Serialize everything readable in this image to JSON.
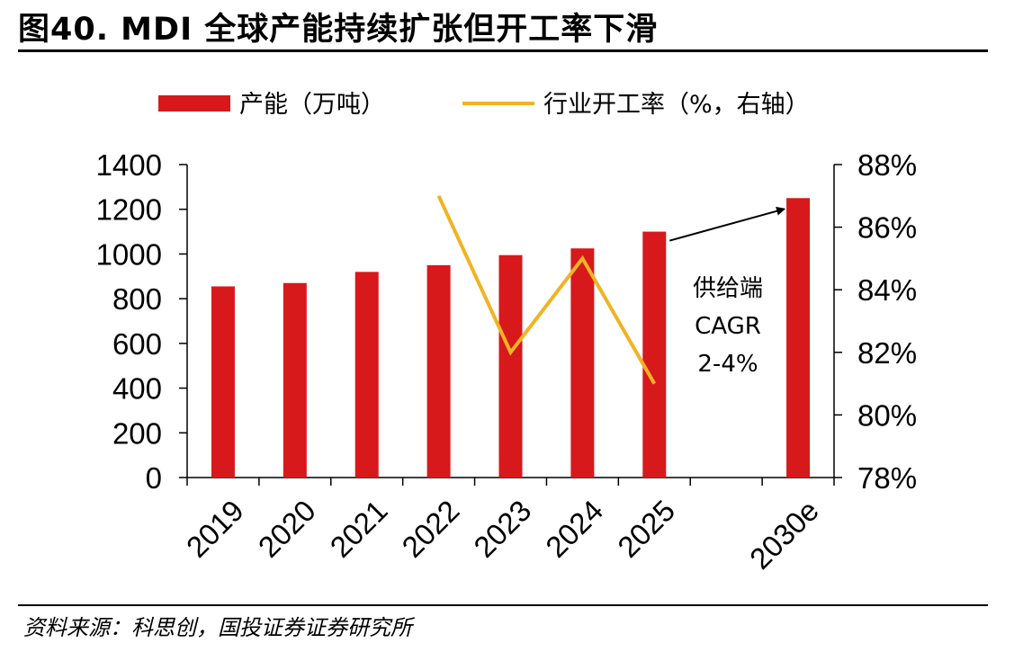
{
  "header": {
    "title": "图40. MDI 全球产能持续扩张但开工率下滑"
  },
  "footer": {
    "source": "资料来源：科思创，国投证券证券研究所"
  },
  "chart_data": {
    "type": "bar",
    "title": "图40. MDI 全球产能持续扩张但开工率下滑",
    "categories": [
      "2019",
      "2020",
      "2021",
      "2022",
      "2023",
      "2024",
      "2025",
      "2030e"
    ],
    "series": [
      {
        "name": "产能（万吨）",
        "type": "bar",
        "axis": "left",
        "color": "#d7191c",
        "values": [
          855,
          870,
          920,
          950,
          995,
          1025,
          1100,
          1250
        ]
      },
      {
        "name": "行业开工率（%，右轴）",
        "type": "line",
        "axis": "right",
        "color": "#f0b323",
        "values": [
          null,
          null,
          null,
          87,
          82,
          85,
          81,
          null
        ]
      }
    ],
    "y_left": {
      "lim": [
        0,
        1400
      ],
      "ticks": [
        "0",
        "200",
        "400",
        "600",
        "800",
        "1000",
        "1200",
        "1400"
      ]
    },
    "y_right": {
      "lim": [
        78,
        88
      ],
      "ticks": [
        "78%",
        "80%",
        "82%",
        "84%",
        "86%",
        "88%"
      ]
    },
    "grid": false,
    "legend_position": "top",
    "annotation": {
      "lines": [
        "供给端",
        "CAGR",
        "2-4%"
      ],
      "arrow_from": "2025",
      "arrow_to": "2030e"
    }
  }
}
